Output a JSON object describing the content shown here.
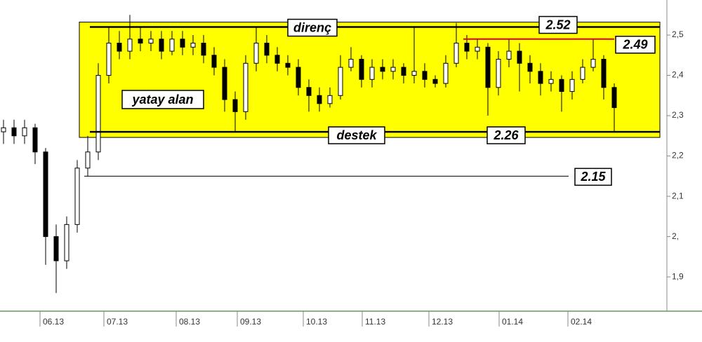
{
  "chart_data": {
    "type": "candlestick",
    "x": [
      1,
      4,
      7,
      10,
      13,
      16,
      19,
      22,
      25,
      28,
      31,
      34,
      37,
      40,
      43,
      46,
      49,
      52,
      55,
      58,
      61,
      64,
      67,
      70,
      73,
      76,
      79,
      82,
      85,
      88,
      91,
      94,
      97,
      100,
      103,
      106,
      109,
      112,
      115,
      118,
      121,
      124,
      127,
      130,
      133,
      136,
      139,
      142,
      145,
      148,
      151,
      154,
      157,
      160,
      163,
      166,
      169,
      172,
      175
    ],
    "open": [
      2.26,
      2.27,
      2.25,
      2.27,
      2.21,
      2.0,
      1.94,
      2.03,
      2.17,
      2.21,
      2.4,
      2.48,
      2.46,
      2.49,
      2.48,
      2.49,
      2.46,
      2.49,
      2.47,
      2.48,
      2.45,
      2.42,
      2.34,
      2.31,
      2.43,
      2.48,
      2.45,
      2.43,
      2.42,
      2.37,
      2.35,
      2.33,
      2.35,
      2.42,
      2.44,
      2.39,
      2.42,
      2.41,
      2.42,
      2.4,
      2.41,
      2.39,
      2.38,
      2.43,
      2.48,
      2.46,
      2.47,
      2.37,
      2.44,
      2.46,
      2.43,
      2.41,
      2.38,
      2.39,
      2.36,
      2.39,
      2.42,
      2.44,
      2.37
    ],
    "high": [
      2.29,
      2.29,
      2.29,
      2.28,
      2.22,
      2.03,
      2.05,
      2.19,
      2.25,
      2.43,
      2.52,
      2.51,
      2.55,
      2.52,
      2.51,
      2.51,
      2.51,
      2.51,
      2.5,
      2.5,
      2.47,
      2.44,
      2.36,
      2.45,
      2.52,
      2.5,
      2.47,
      2.45,
      2.44,
      2.39,
      2.37,
      2.37,
      2.45,
      2.47,
      2.45,
      2.44,
      2.44,
      2.44,
      2.43,
      2.52,
      2.43,
      2.4,
      2.45,
      2.53,
      2.5,
      2.49,
      2.48,
      2.46,
      2.49,
      2.48,
      2.45,
      2.43,
      2.41,
      2.4,
      2.41,
      2.44,
      2.49,
      2.45,
      2.38
    ],
    "low": [
      2.23,
      2.23,
      2.23,
      2.18,
      1.93,
      1.86,
      1.92,
      2.01,
      2.15,
      2.19,
      2.38,
      2.44,
      2.44,
      2.46,
      2.46,
      2.44,
      2.45,
      2.45,
      2.45,
      2.43,
      2.4,
      2.31,
      2.26,
      2.29,
      2.41,
      2.43,
      2.41,
      2.4,
      2.35,
      2.31,
      2.31,
      2.32,
      2.34,
      2.41,
      2.37,
      2.37,
      2.39,
      2.39,
      2.38,
      2.38,
      2.37,
      2.37,
      2.37,
      2.42,
      2.44,
      2.44,
      2.3,
      2.35,
      2.42,
      2.36,
      2.38,
      2.35,
      2.36,
      2.31,
      2.34,
      2.38,
      2.41,
      2.34,
      2.26
    ],
    "close": [
      2.27,
      2.25,
      2.27,
      2.21,
      2.0,
      1.94,
      2.03,
      2.17,
      2.21,
      2.4,
      2.48,
      2.46,
      2.49,
      2.48,
      2.49,
      2.46,
      2.49,
      2.47,
      2.48,
      2.45,
      2.42,
      2.34,
      2.31,
      2.43,
      2.48,
      2.45,
      2.43,
      2.42,
      2.37,
      2.35,
      2.33,
      2.35,
      2.42,
      2.44,
      2.39,
      2.42,
      2.41,
      2.42,
      2.4,
      2.41,
      2.39,
      2.38,
      2.43,
      2.48,
      2.46,
      2.47,
      2.37,
      2.44,
      2.46,
      2.43,
      2.41,
      2.38,
      2.39,
      2.36,
      2.39,
      2.42,
      2.44,
      2.37,
      2.32
    ],
    "xlim": [
      0,
      190
    ],
    "xticks": [
      {
        "value": 11.4,
        "label": "06.13"
      },
      {
        "value": 29.6,
        "label": "07.13"
      },
      {
        "value": 50.2,
        "label": "08.13"
      },
      {
        "value": 67.6,
        "label": "09.13"
      },
      {
        "value": 86.4,
        "label": "10.13"
      },
      {
        "value": 103.2,
        "label": "11.13"
      },
      {
        "value": 122.2,
        "label": "12.13"
      },
      {
        "value": 142.2,
        "label": "01.14"
      },
      {
        "value": 161.8,
        "label": "02.14"
      }
    ],
    "ylim": [
      1.815,
      2.587
    ],
    "yticks": [
      {
        "value": 2.5,
        "label": "2,5"
      },
      {
        "value": 2.4,
        "label": "2,4"
      },
      {
        "value": 2.3,
        "label": "2,3"
      },
      {
        "value": 2.2,
        "label": "2,2"
      },
      {
        "value": 2.1,
        "label": "2,1"
      },
      {
        "value": 2,
        "label": "2,"
      },
      {
        "value": 1.9,
        "label": "1,9"
      }
    ],
    "levels": [
      {
        "value": 2.52,
        "name": "direnç",
        "color": "#000000"
      },
      {
        "value": 2.49,
        "color": "#e00000"
      },
      {
        "value": 2.26,
        "name": "destek",
        "color": "#000000"
      },
      {
        "value": 2.15,
        "color": "#000000"
      }
    ],
    "zone_label": "yatay alan",
    "zone_color": "#ffff00"
  }
}
